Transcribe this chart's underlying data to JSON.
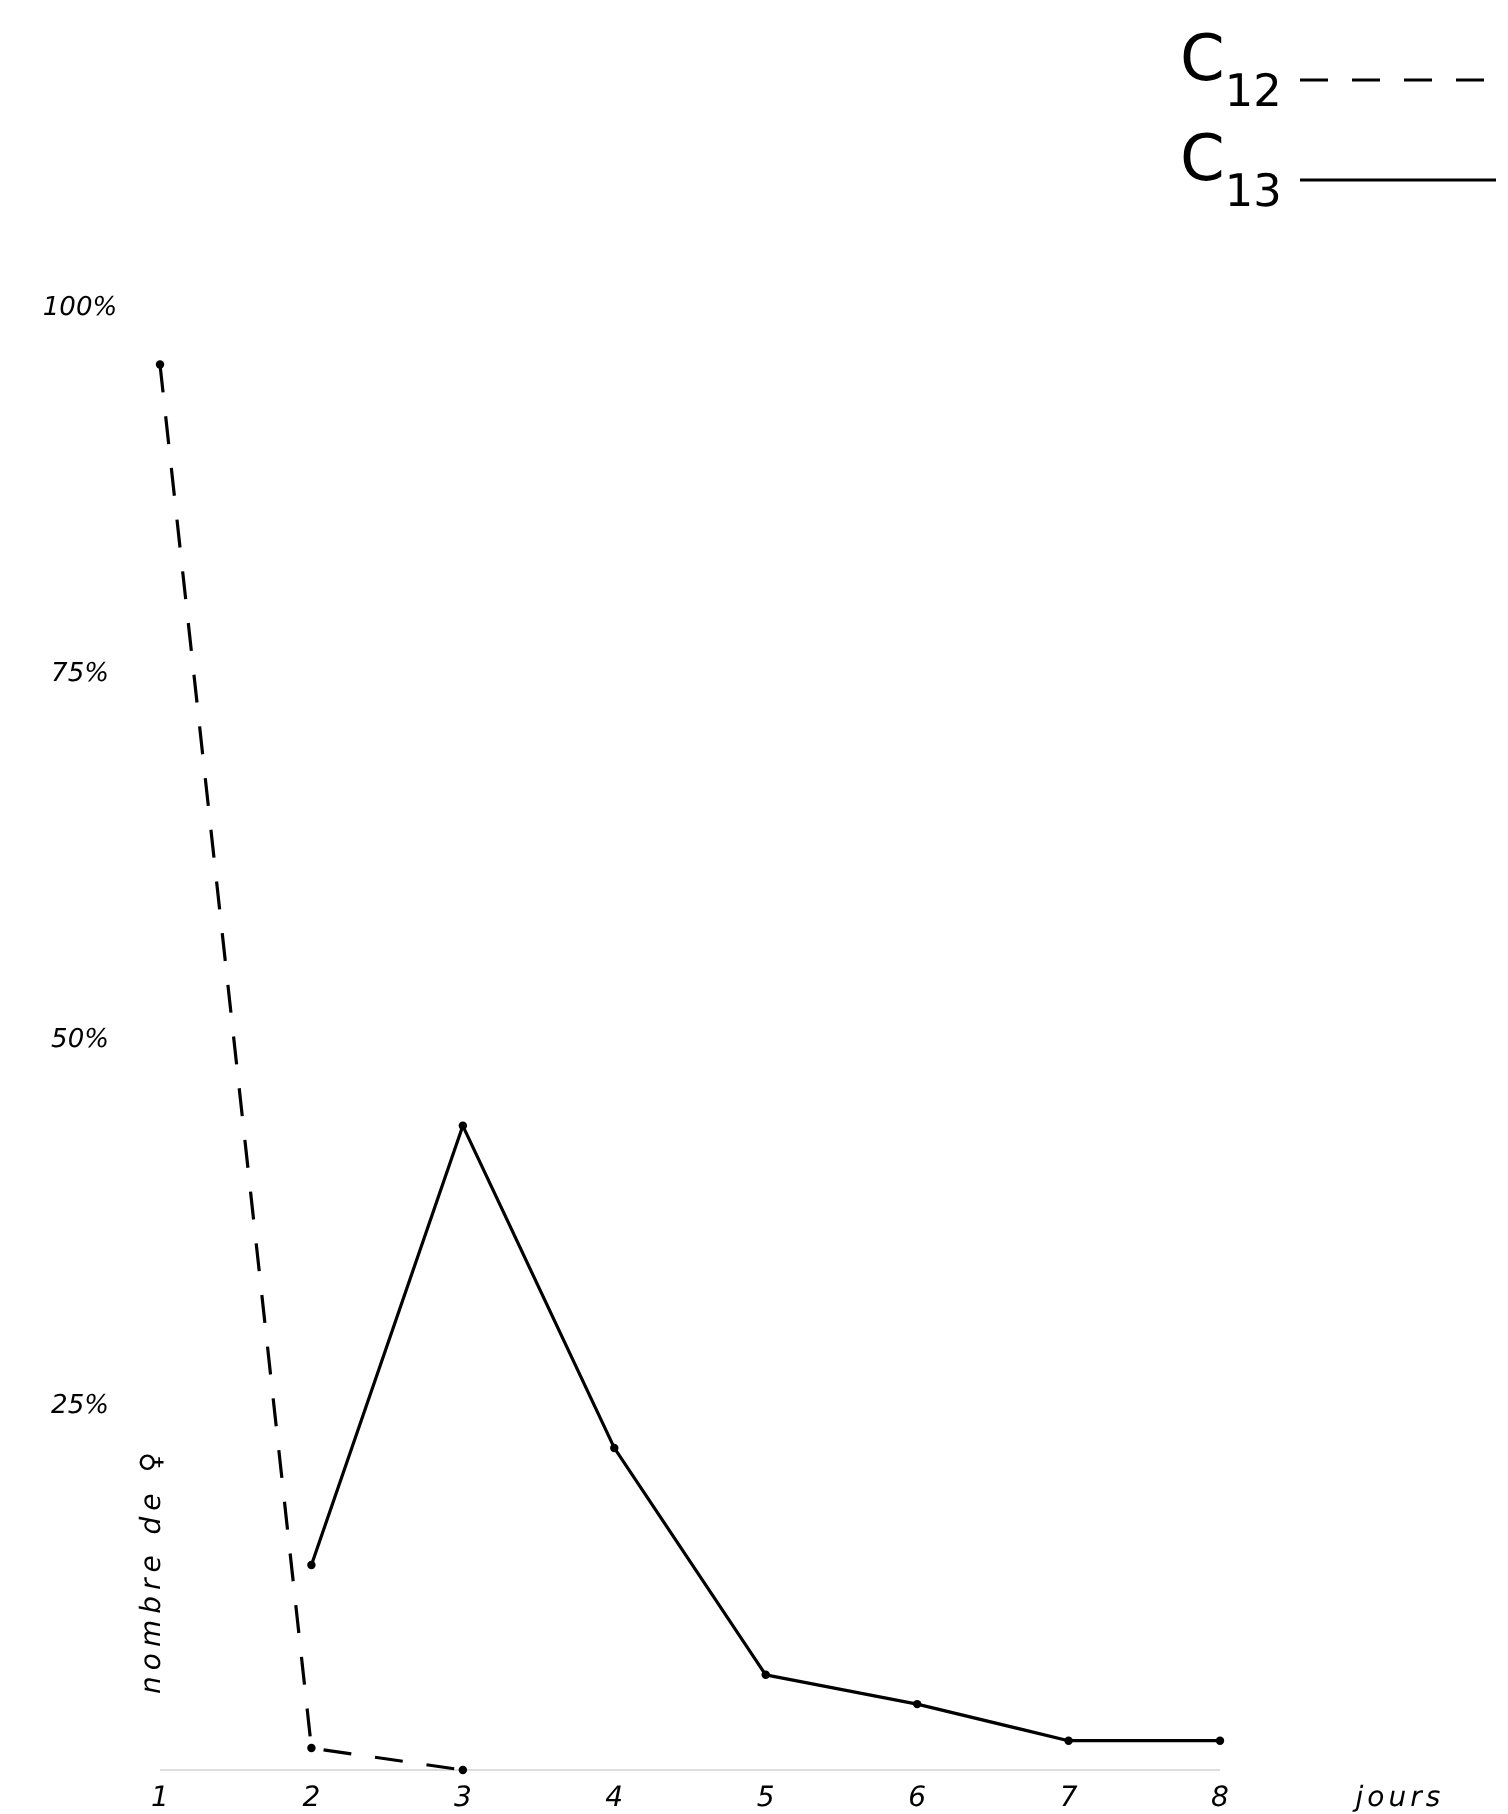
{
  "chart_data": {
    "type": "line",
    "xlabel": "jours",
    "ylabel": "nombre de ♀",
    "xlim": [
      1,
      8
    ],
    "xticks": [
      1,
      2,
      3,
      4,
      5,
      6,
      7,
      8
    ],
    "ylim": [
      0,
      100
    ],
    "yticks": [
      {
        "value": 25,
        "label": "25%"
      },
      {
        "value": 50,
        "label": "50%"
      },
      {
        "value": 75,
        "label": "75%"
      },
      {
        "value": 100,
        "label": "100%"
      }
    ],
    "legend": "top right",
    "marker": "circle",
    "series": [
      {
        "name": "C$_{12}$",
        "color": "#000000",
        "line_style": "dashed",
        "x": [
          1,
          2,
          3
        ],
        "values": [
          96,
          1.5,
          0
        ]
      },
      {
        "name": "C$_{13}$",
        "color": "#000000",
        "line_style": "solid",
        "x": [
          2,
          3,
          4,
          5,
          6,
          7,
          8
        ],
        "values": [
          14,
          44,
          22,
          6.5,
          4.5,
          2,
          2
        ]
      }
    ]
  }
}
